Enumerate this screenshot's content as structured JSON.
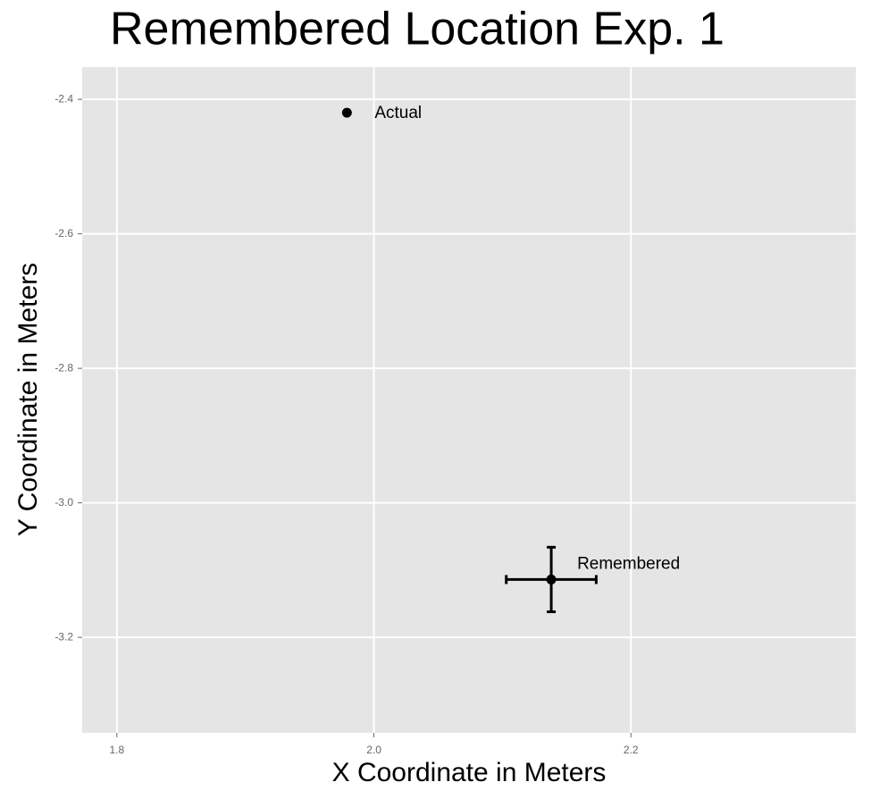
{
  "chart_data": {
    "type": "scatter",
    "title": "Remembered Location Exp. 1",
    "x_label": "X Coordinate in Meters",
    "y_label": "Y Coordinate in Meters",
    "x": [
      1.979,
      2.138
    ],
    "values": [
      -2.42,
      -3.114
    ],
    "x_errors": [
      null,
      0.035
    ],
    "y_errors": [
      null,
      0.048
    ],
    "labels": [
      "Actual",
      "Remembered"
    ],
    "color": "#000000",
    "xlim": [
      1.773,
      2.375
    ],
    "ylim": [
      -3.342,
      -2.352
    ],
    "xticks": [
      1.8,
      {
        "value": 2,
        "label": "2.0"
      },
      2.2
    ],
    "yticks": [
      -2.4,
      -2.6,
      -2.8,
      {
        "value": -3,
        "label": "-3.0"
      },
      -3.2
    ],
    "grid": true
  }
}
